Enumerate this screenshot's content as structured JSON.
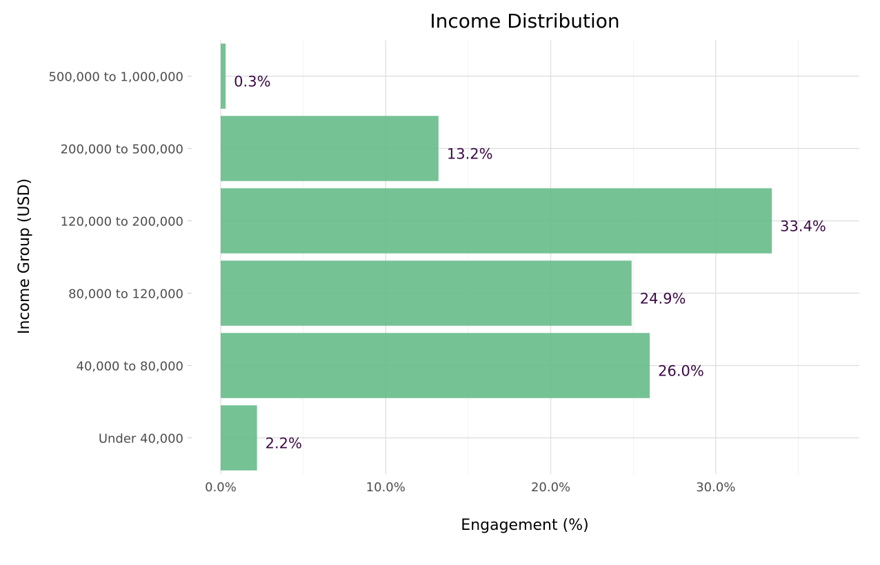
{
  "chart_data": {
    "type": "bar",
    "orientation": "horizontal",
    "title": "Income Distribution",
    "xlabel": "Engagement (%)",
    "ylabel": "Income Group (USD)",
    "xlim": [
      0,
      38.7
    ],
    "xticks": [
      0,
      10,
      20,
      30
    ],
    "xtick_labels": [
      "0.0%",
      "10.0%",
      "20.0%",
      "30.0%"
    ],
    "categories": [
      "Under 40,000",
      "40,000 to 80,000",
      "80,000 to 120,000",
      "120,000 to 200,000",
      "200,000 to 500,000",
      "500,000 to 1,000,000"
    ],
    "values": [
      2.2,
      26.0,
      24.9,
      33.4,
      13.2,
      0.3
    ],
    "data_labels": [
      "2.2%",
      "26.0%",
      "24.9%",
      "33.4%",
      "13.2%",
      "0.3%"
    ],
    "grid": true,
    "colors": {
      "bar": "#66bb8a",
      "label": "#3b0a45",
      "grid": "#dcdcdc",
      "tick_text": "#4d4d4d",
      "title_text": "#000000"
    }
  }
}
